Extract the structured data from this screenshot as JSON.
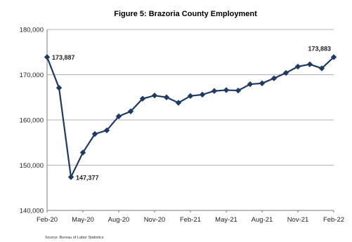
{
  "chart_data": {
    "type": "line",
    "title": "Figure 5: Brazoria County Employment",
    "xlabel": "",
    "ylabel": "",
    "source": "Source: Bureau of Labor Statistics",
    "ylim": [
      140000,
      180000
    ],
    "y_ticks": [
      140000,
      150000,
      160000,
      170000,
      180000
    ],
    "y_tick_labels": [
      "140,000",
      "150,000",
      "160,000",
      "170,000",
      "180,000"
    ],
    "x_tick_labels": [
      "Feb-20",
      "May-20",
      "Aug-20",
      "Nov-20",
      "Feb-21",
      "May-21",
      "Aug-21",
      "Nov-21",
      "Feb-22"
    ],
    "grid": true,
    "legend": "none",
    "line_color": "#1f3b63",
    "categories": [
      "Feb-20",
      "Mar-20",
      "Apr-20",
      "May-20",
      "Jun-20",
      "Jul-20",
      "Aug-20",
      "Sep-20",
      "Oct-20",
      "Nov-20",
      "Dec-20",
      "Jan-21",
      "Feb-21",
      "Mar-21",
      "Apr-21",
      "May-21",
      "Jun-21",
      "Jul-21",
      "Aug-21",
      "Sep-21",
      "Oct-21",
      "Nov-21",
      "Dec-21",
      "Jan-22",
      "Feb-22"
    ],
    "values": [
      173887,
      167100,
      147377,
      152800,
      156900,
      157700,
      160800,
      161900,
      164700,
      165400,
      165000,
      163800,
      165300,
      165600,
      166400,
      166600,
      166500,
      167900,
      168100,
      169200,
      170400,
      171800,
      172300,
      171400,
      173883
    ],
    "annotations": [
      {
        "label": "173,887",
        "index": 0
      },
      {
        "label": "147,377",
        "index": 2
      },
      {
        "label": "173,883",
        "index": 24
      }
    ]
  }
}
